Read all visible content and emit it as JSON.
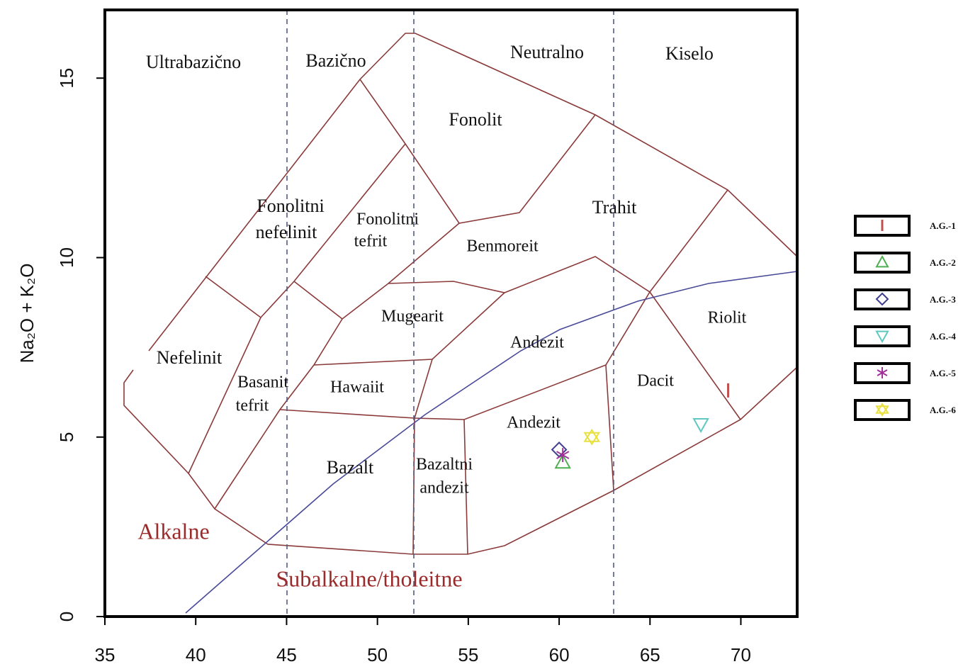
{
  "chart_data": {
    "type": "scatter",
    "ylabel": "Na₂O + K₂O",
    "xlim": [
      35,
      73.1
    ],
    "ylim": [
      0,
      16.9
    ],
    "xticks": [
      35,
      40,
      45,
      50,
      55,
      60,
      65,
      70
    ],
    "yticks": [
      0,
      5,
      10,
      15
    ],
    "legend": "right",
    "annotations": [
      "Ultrabazično",
      "Bazično",
      "Neutralno",
      "Kiselo",
      "Fonolit",
      "Fonolitni",
      "nefelinit",
      "Fonolitni",
      "tefrit",
      "Benmoreit",
      "Trahit",
      "Mugearit",
      "Andezit",
      "Riolit",
      "Nefelinit",
      "Basanit",
      "tefrit",
      "Hawaiit",
      "Dacit",
      "Andezit",
      "Bazalt",
      "Bazaltni",
      "andezit",
      "Alkalne",
      "Subalkalne/tholeitne"
    ],
    "series": [
      {
        "name": "A.G.-1",
        "color": "#c0504d",
        "marker": "bar",
        "x": [
          69.3
        ],
        "values": [
          6.3
        ]
      },
      {
        "name": "A.G.-2",
        "color": "#4caf50",
        "marker": "triangle",
        "x": [
          60.2
        ],
        "values": [
          4.3
        ]
      },
      {
        "name": "A.G.-3",
        "color": "#3f3d8f",
        "marker": "diamond",
        "x": [
          60.0
        ],
        "values": [
          4.65
        ]
      },
      {
        "name": "A.G.-4",
        "color": "#5fc8c0",
        "marker": "triangle-down",
        "x": [
          67.8
        ],
        "values": [
          5.35
        ]
      },
      {
        "name": "A.G.-5",
        "color": "#a0309a",
        "marker": "asterisk",
        "x": [
          60.2
        ],
        "values": [
          4.5
        ]
      },
      {
        "name": "A.G.-6",
        "color": "#e8e040",
        "marker": "star",
        "x": [
          61.8
        ],
        "values": [
          5.0
        ]
      }
    ]
  }
}
